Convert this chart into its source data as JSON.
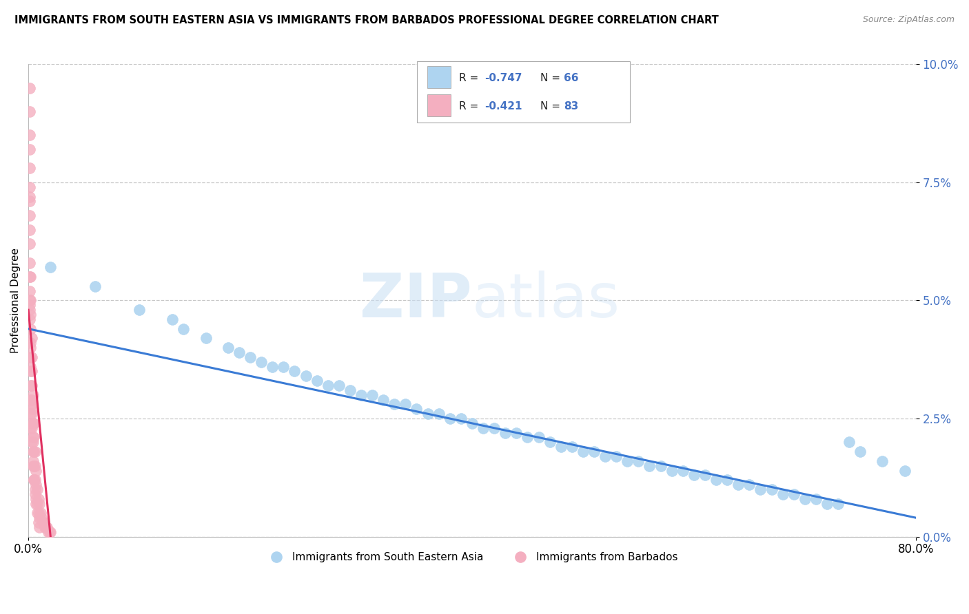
{
  "title": "IMMIGRANTS FROM SOUTH EASTERN ASIA VS IMMIGRANTS FROM BARBADOS PROFESSIONAL DEGREE CORRELATION CHART",
  "source": "Source: ZipAtlas.com",
  "ylabel": "Professional Degree",
  "legend_blue_R": "-0.747",
  "legend_blue_N": "66",
  "legend_pink_R": "-0.421",
  "legend_pink_N": "83",
  "legend_label_blue": "Immigrants from South Eastern Asia",
  "legend_label_pink": "Immigrants from Barbados",
  "xlim": [
    0.0,
    0.8
  ],
  "ylim": [
    0.0,
    0.1
  ],
  "yticks": [
    0.0,
    0.025,
    0.05,
    0.075,
    0.1
  ],
  "ytick_labels": [
    "0.0%",
    "2.5%",
    "5.0%",
    "7.5%",
    "10.0%"
  ],
  "xticks": [
    0.0,
    0.8
  ],
  "xtick_labels": [
    "0.0%",
    "80.0%"
  ],
  "blue_color": "#aed4f0",
  "blue_edge": "#aed4f0",
  "pink_color": "#f4afc0",
  "pink_edge": "#f4afc0",
  "trend_blue": "#3a7bd5",
  "trend_pink": "#e03060",
  "watermark_zip": "ZIP",
  "watermark_atlas": "atlas",
  "background": "#ffffff",
  "grid_color": "#c8c8c8",
  "blue_scatter_x": [
    0.02,
    0.06,
    0.1,
    0.13,
    0.14,
    0.16,
    0.18,
    0.19,
    0.2,
    0.21,
    0.22,
    0.23,
    0.24,
    0.25,
    0.26,
    0.27,
    0.28,
    0.29,
    0.3,
    0.31,
    0.32,
    0.33,
    0.34,
    0.35,
    0.36,
    0.37,
    0.38,
    0.39,
    0.4,
    0.41,
    0.42,
    0.43,
    0.44,
    0.45,
    0.46,
    0.47,
    0.48,
    0.49,
    0.5,
    0.51,
    0.52,
    0.53,
    0.54,
    0.55,
    0.56,
    0.57,
    0.58,
    0.59,
    0.6,
    0.61,
    0.62,
    0.63,
    0.64,
    0.65,
    0.66,
    0.67,
    0.68,
    0.69,
    0.7,
    0.71,
    0.72,
    0.73,
    0.74,
    0.75,
    0.77,
    0.79
  ],
  "blue_scatter_y": [
    0.057,
    0.053,
    0.048,
    0.046,
    0.044,
    0.042,
    0.04,
    0.039,
    0.038,
    0.037,
    0.036,
    0.036,
    0.035,
    0.034,
    0.033,
    0.032,
    0.032,
    0.031,
    0.03,
    0.03,
    0.029,
    0.028,
    0.028,
    0.027,
    0.026,
    0.026,
    0.025,
    0.025,
    0.024,
    0.023,
    0.023,
    0.022,
    0.022,
    0.021,
    0.021,
    0.02,
    0.019,
    0.019,
    0.018,
    0.018,
    0.017,
    0.017,
    0.016,
    0.016,
    0.015,
    0.015,
    0.014,
    0.014,
    0.013,
    0.013,
    0.012,
    0.012,
    0.011,
    0.011,
    0.01,
    0.01,
    0.009,
    0.009,
    0.008,
    0.008,
    0.007,
    0.007,
    0.02,
    0.018,
    0.016,
    0.014
  ],
  "pink_scatter_x": [
    0.001,
    0.001,
    0.001,
    0.001,
    0.001,
    0.001,
    0.001,
    0.001,
    0.001,
    0.001,
    0.001,
    0.001,
    0.001,
    0.001,
    0.001,
    0.002,
    0.002,
    0.002,
    0.002,
    0.002,
    0.002,
    0.002,
    0.002,
    0.002,
    0.002,
    0.003,
    0.003,
    0.003,
    0.003,
    0.003,
    0.003,
    0.003,
    0.004,
    0.004,
    0.004,
    0.004,
    0.004,
    0.004,
    0.005,
    0.005,
    0.005,
    0.005,
    0.005,
    0.006,
    0.006,
    0.006,
    0.006,
    0.007,
    0.007,
    0.007,
    0.008,
    0.008,
    0.009,
    0.009,
    0.01,
    0.01,
    0.011,
    0.012,
    0.013,
    0.014,
    0.015,
    0.016,
    0.017,
    0.018,
    0.019,
    0.02,
    0.001,
    0.001,
    0.002,
    0.002,
    0.003,
    0.003,
    0.004,
    0.004,
    0.005,
    0.006,
    0.007,
    0.008,
    0.009,
    0.01,
    0.001,
    0.002,
    0.003
  ],
  "pink_scatter_y": [
    0.095,
    0.09,
    0.085,
    0.082,
    0.078,
    0.074,
    0.071,
    0.068,
    0.065,
    0.062,
    0.058,
    0.055,
    0.052,
    0.049,
    0.046,
    0.05,
    0.047,
    0.044,
    0.041,
    0.038,
    0.035,
    0.032,
    0.029,
    0.026,
    0.023,
    0.038,
    0.035,
    0.032,
    0.029,
    0.026,
    0.023,
    0.02,
    0.03,
    0.027,
    0.024,
    0.021,
    0.018,
    0.015,
    0.024,
    0.021,
    0.018,
    0.015,
    0.012,
    0.018,
    0.015,
    0.012,
    0.009,
    0.014,
    0.011,
    0.008,
    0.01,
    0.007,
    0.008,
    0.005,
    0.007,
    0.004,
    0.005,
    0.004,
    0.003,
    0.003,
    0.002,
    0.002,
    0.002,
    0.001,
    0.001,
    0.001,
    0.05,
    0.048,
    0.04,
    0.036,
    0.028,
    0.024,
    0.02,
    0.016,
    0.012,
    0.01,
    0.007,
    0.005,
    0.003,
    0.002,
    0.072,
    0.055,
    0.042
  ],
  "blue_trend_x": [
    0.0,
    0.8
  ],
  "blue_trend_y": [
    0.044,
    0.004
  ],
  "pink_trend_x": [
    0.0,
    0.02
  ],
  "pink_trend_y": [
    0.048,
    0.0
  ]
}
